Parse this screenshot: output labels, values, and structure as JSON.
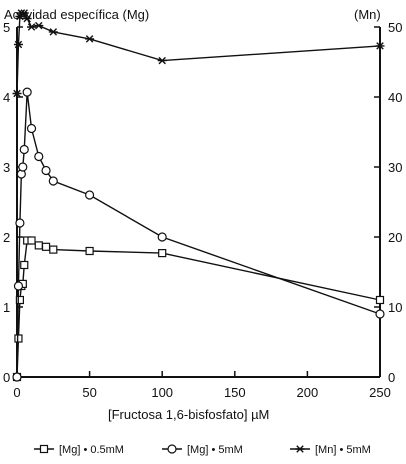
{
  "chart_data": {
    "type": "line",
    "title": "",
    "ylabel_left": "Actividad específica (Mg)",
    "ylabel_right": "(Mn)",
    "xlabel": "[Fructosa 1,6-bisfosfato] µM",
    "xlim": [
      0,
      250
    ],
    "ylim_left": [
      0,
      5
    ],
    "ylim_right": [
      0,
      50
    ],
    "x_ticks": [
      "0",
      "50",
      "100",
      "150",
      "200",
      "250"
    ],
    "y_ticks_left": [
      "0",
      "1",
      "2",
      "3",
      "4",
      "5"
    ],
    "y_ticks_right": [
      "0",
      "10",
      "20",
      "30",
      "40",
      "50"
    ],
    "grid": false,
    "legend_position": "bottom",
    "series": [
      {
        "name": "[Mg] • 0.5mM",
        "marker": "square",
        "axis": "left",
        "x": [
          0,
          1,
          2,
          3,
          4,
          5,
          7,
          10,
          15,
          20,
          25,
          50,
          100,
          250
        ],
        "y": [
          0.0,
          0.55,
          1.1,
          1.3,
          1.33,
          1.6,
          1.95,
          1.95,
          1.88,
          1.86,
          1.82,
          1.8,
          1.77,
          1.1
        ]
      },
      {
        "name": "[Mg] • 5mM",
        "marker": "circle",
        "axis": "left",
        "x": [
          0,
          1,
          2,
          3,
          4,
          5,
          7,
          10,
          15,
          20,
          25,
          50,
          100,
          250
        ],
        "y": [
          0.0,
          1.3,
          2.2,
          2.9,
          3.0,
          3.25,
          4.07,
          3.55,
          3.15,
          2.95,
          2.8,
          2.6,
          2.0,
          0.9
        ]
      },
      {
        "name": "[Mn] • 5mM",
        "marker": "asterisk",
        "axis": "right",
        "x": [
          0,
          1,
          2,
          3,
          5,
          7,
          10,
          15,
          25,
          50,
          100,
          250
        ],
        "y": [
          40.5,
          47.5,
          51.5,
          52.0,
          52.0,
          51.2,
          50.0,
          50.2,
          49.3,
          48.3,
          45.2,
          47.3
        ]
      }
    ]
  }
}
